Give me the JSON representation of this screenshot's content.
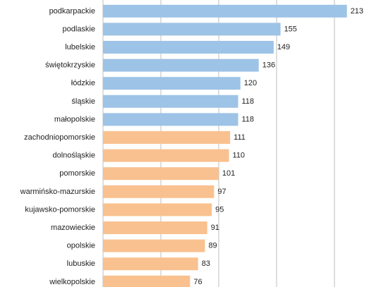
{
  "chart_data": {
    "type": "bar",
    "orientation": "horizontal",
    "title": "",
    "xlabel": "",
    "ylabel": "",
    "categories": [
      "podkarpackie",
      "podlaskie",
      "lubelskie",
      "świętokrzyskie",
      "łódzkie",
      "śląskie",
      "małopolskie",
      "zachodniopomorskie",
      "dolnośląskie",
      "pomorskie",
      "warmińsko-mazurskie",
      "kujawsko-pomorskie",
      "mazowieckie",
      "opolskie",
      "lubuskie",
      "wielkopolskie"
    ],
    "values": [
      213,
      155,
      149,
      136,
      120,
      118,
      118,
      111,
      110,
      101,
      97,
      95,
      91,
      89,
      83,
      76
    ],
    "groups": [
      "a",
      "a",
      "a",
      "a",
      "a",
      "a",
      "a",
      "b",
      "b",
      "b",
      "b",
      "b",
      "b",
      "b",
      "b",
      "b"
    ],
    "group_colors": {
      "a": "#9dc3e6",
      "b": "#f9c18f"
    },
    "xlim": [
      0,
      220
    ],
    "grid": true,
    "legend": "none"
  }
}
